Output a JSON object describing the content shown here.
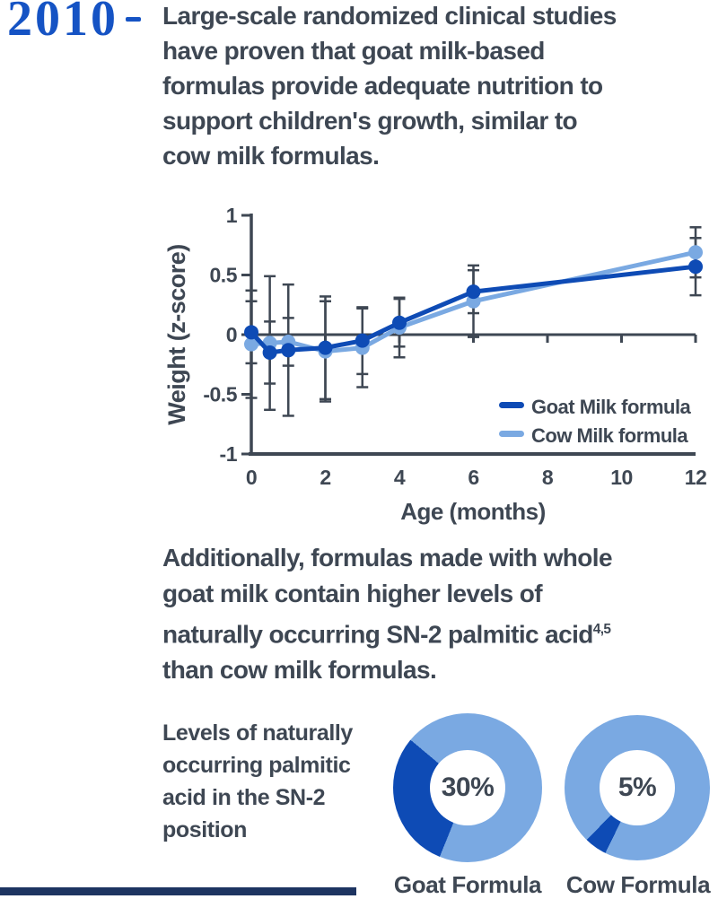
{
  "colors": {
    "year_blue": "#1553C4",
    "dark_blue": "#0E4BB5",
    "light_blue": "#7AA9E2",
    "text_slate": "#3E4753",
    "axis_slate": "#3E4753",
    "footer_navy": "#1D3461",
    "background": "#FFFFFF"
  },
  "timeline": {
    "year": "2010"
  },
  "intro_paragraph": {
    "lines": [
      "Large-scale randomized clinical studies",
      "have proven that goat milk-based",
      "formulas provide adequate nutrition to",
      "support children's growth, similar to",
      "cow milk formulas."
    ]
  },
  "sn2_paragraph": {
    "lines": [
      "Additionally, formulas made with whole",
      "goat milk contain higher levels of",
      {
        "text": "naturally occurring SN-2 palmitic acid",
        "sup": "4,5"
      },
      "than cow milk formulas."
    ]
  },
  "donut_section": {
    "caption_lines": [
      "Levels of naturally",
      "occurring palmitic",
      "acid in the SN-2",
      "position"
    ]
  },
  "chart_data": [
    {
      "type": "line",
      "xlabel": "Age (months)",
      "ylabel": "Weight (z-score)",
      "xlim": [
        0,
        12
      ],
      "ylim": [
        -1,
        1
      ],
      "xticks": [
        0,
        2,
        4,
        6,
        8,
        10,
        12
      ],
      "yticks": [
        1,
        0.5,
        0,
        -0.5,
        -1
      ],
      "ytick_labels": [
        "1",
        "0.5",
        "0",
        "-0.5",
        "-1"
      ],
      "grid": false,
      "zero_line": true,
      "legend_position": "bottom-right",
      "x": [
        0,
        0.5,
        1,
        2,
        3,
        4,
        6,
        12
      ],
      "series": [
        {
          "name": "Cow Milk formula",
          "color": "#7AA9E2",
          "values": [
            -0.08,
            -0.07,
            -0.06,
            -0.14,
            -0.11,
            0.06,
            0.28,
            0.69
          ],
          "errors": [
            0.45,
            0.56,
            0.2,
            0.42,
            0.33,
            0.25,
            0.3,
            0.21
          ]
        },
        {
          "name": "Goat Milk formula",
          "color": "#0E4BB5",
          "values": [
            0.02,
            -0.15,
            -0.13,
            -0.11,
            -0.05,
            0.1,
            0.36,
            0.57
          ],
          "errors": [
            0.26,
            0.26,
            0.55,
            0.43,
            0.28,
            0.2,
            0.18,
            0.24
          ]
        }
      ],
      "legend_order": [
        "Goat Milk formula",
        "Cow Milk formula"
      ]
    },
    {
      "type": "donut",
      "title": "Levels of naturally occurring palmitic acid in the SN-2 position",
      "items": [
        {
          "label": "Goat Formula",
          "value_pct": 30,
          "display": "30%",
          "segment_start_deg": 202
        },
        {
          "label": "Cow Formula",
          "value_pct": 5,
          "display": "5%",
          "segment_start_deg": 206
        }
      ]
    }
  ]
}
